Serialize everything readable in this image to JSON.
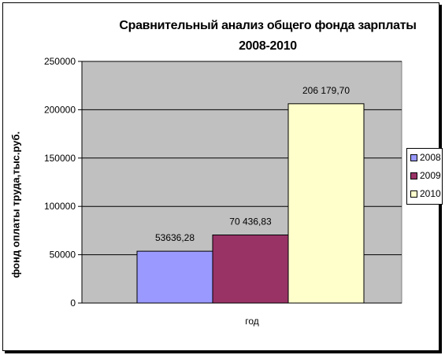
{
  "chart_data": {
    "type": "bar",
    "title": "Сравнительный анализ общего фонда зарплаты 2008-2010",
    "xlabel": "год",
    "ylabel": "фонд оплаты труда,тыс.руб.",
    "ylim": [
      0,
      250000
    ],
    "yticks": [
      "0",
      "50000",
      "100000",
      "150000",
      "200000",
      "250000"
    ],
    "legend_position": "right",
    "grid": true,
    "plot_background": "#c0c0c0",
    "series": [
      {
        "name": "2008",
        "value": 53636.28,
        "label": "53636,28",
        "color": "#9999ff"
      },
      {
        "name": "2009",
        "value": 70436.83,
        "label": "70 436,83",
        "color": "#993366"
      },
      {
        "name": "2010",
        "value": 206179.7,
        "label": "206 179,70",
        "color": "#ffffcc"
      }
    ]
  }
}
